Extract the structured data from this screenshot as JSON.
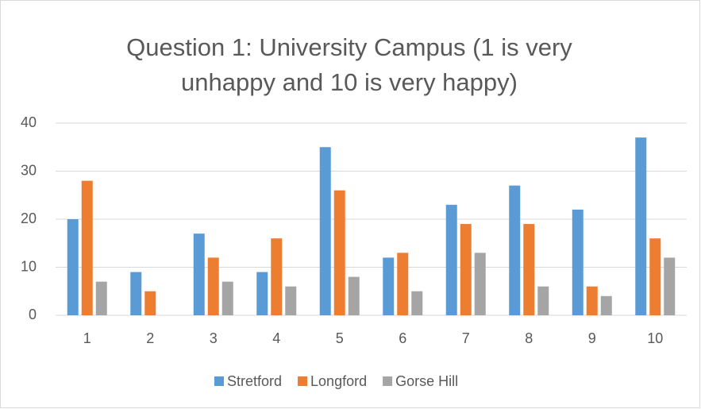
{
  "chart_data": {
    "type": "bar",
    "title": "Question 1: University Campus (1 is very unhappy and 10 is very happy)",
    "categories": [
      "1",
      "2",
      "3",
      "4",
      "5",
      "6",
      "7",
      "8",
      "9",
      "10"
    ],
    "series": [
      {
        "name": "Stretford",
        "color": "#5b9bd5",
        "values": [
          20,
          9,
          17,
          9,
          35,
          12,
          23,
          27,
          22,
          37
        ]
      },
      {
        "name": "Longford",
        "color": "#ed7d31",
        "values": [
          28,
          5,
          12,
          16,
          26,
          13,
          19,
          19,
          6,
          16
        ]
      },
      {
        "name": "Gorse Hill",
        "color": "#a5a5a5",
        "values": [
          7,
          0,
          7,
          6,
          8,
          5,
          13,
          6,
          4,
          12
        ]
      }
    ],
    "ylim": [
      0,
      40
    ],
    "yticks": [
      0,
      10,
      20,
      30,
      40
    ],
    "grid": true,
    "legend": "bottom"
  }
}
